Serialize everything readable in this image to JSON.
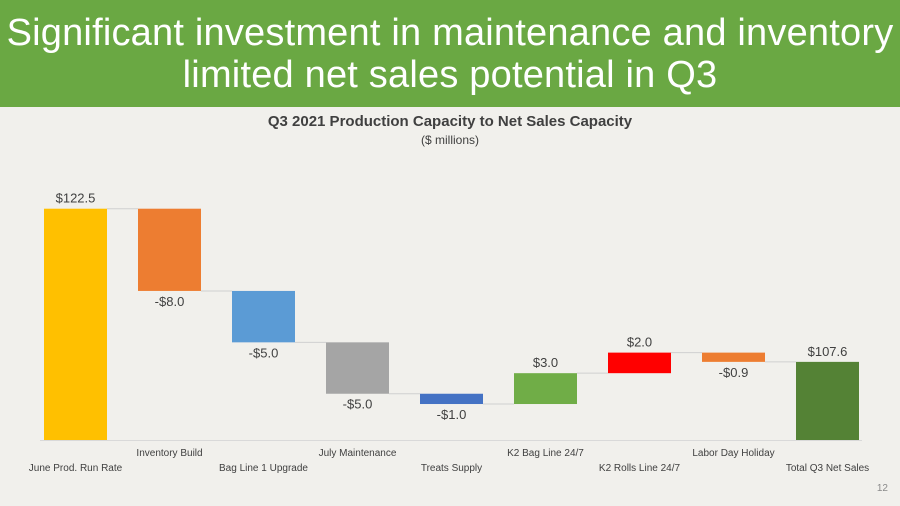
{
  "header": {
    "title_line1": "Significant investment in maintenance and inventory",
    "title_line2": "limited net sales potential in Q3"
  },
  "page_number": "12",
  "chart_data": {
    "type": "bar",
    "subtype": "waterfall",
    "title": "Q3 2021 Production Capacity to Net Sales Capacity",
    "subtitle": "($ millions)",
    "categories": [
      "June Prod. Run Rate",
      "Inventory Build",
      "Bag Line 1 Upgrade",
      "July Maintenance",
      "Treats Supply",
      "K2 Bag Line 24/7",
      "K2 Rolls Line 24/7",
      "Labor Day Holiday",
      "Total Q3 Net Sales"
    ],
    "values": [
      122.5,
      -8.0,
      -5.0,
      -5.0,
      -1.0,
      3.0,
      2.0,
      -0.9,
      107.6
    ],
    "value_labels": [
      "$122.5",
      "-$8.0",
      "-$5.0",
      "-$5.0",
      "-$1.0",
      "$3.0",
      "$2.0",
      "-$0.9",
      "$107.6"
    ],
    "bar_kinds": [
      "total",
      "delta",
      "delta",
      "delta",
      "delta",
      "delta",
      "delta",
      "delta",
      "total"
    ],
    "colors": [
      "#ffc000",
      "#ed7d31",
      "#5b9bd5",
      "#a5a5a5",
      "#4472c4",
      "#70ad47",
      "#ff0000",
      "#ed7d31",
      "#548235"
    ],
    "ylim": [
      100,
      125
    ],
    "xlabel": "",
    "ylabel": "",
    "legend": "none",
    "grid": false
  }
}
